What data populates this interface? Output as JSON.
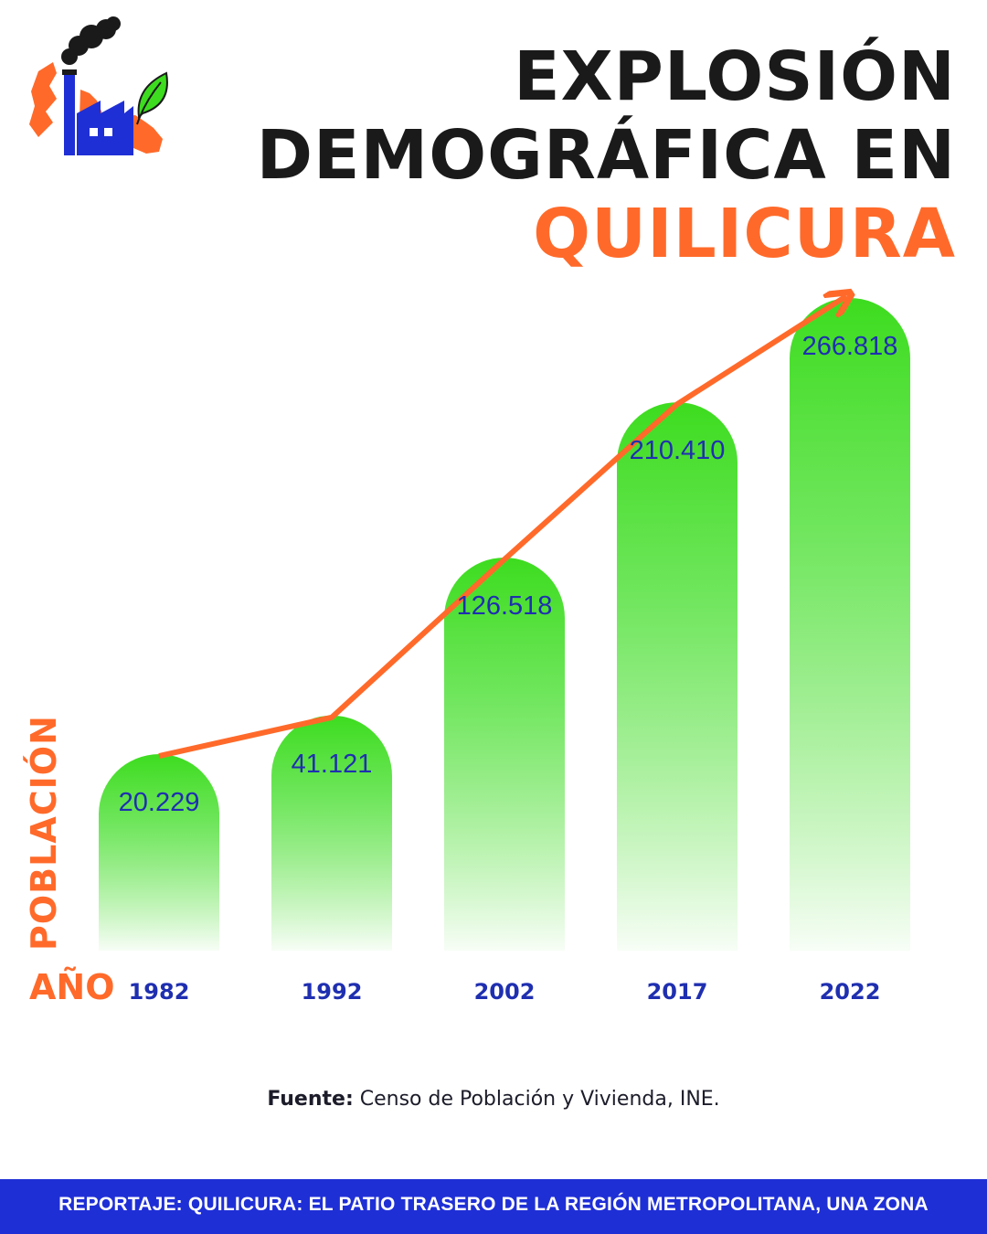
{
  "header": {
    "title_line1": "EXPLOSIÓN",
    "title_line2": "DEMOGRÁFICA EN",
    "title_line3": "QUILICURA"
  },
  "colors": {
    "title_dark": "#1a1a1a",
    "accent_orange": "#ff6a2a",
    "bar_green": "#3ddc1f",
    "value_blue": "#1f2fb0",
    "footer_blue": "#1f2fd6"
  },
  "logo": {
    "icon": "factory-with-leaf-icon"
  },
  "chart_data": {
    "type": "bar",
    "categories": [
      "1982",
      "1992",
      "2002",
      "2017",
      "2022"
    ],
    "values": [
      20229,
      41121,
      126518,
      210410,
      266818
    ],
    "value_labels": [
      "20.229",
      "41.121",
      "126.518",
      "210.410",
      "266.818"
    ],
    "ylabel": "POBLACIÓN",
    "xlabel": "AÑO",
    "trend_arrow": true,
    "grid": false,
    "legend": "none"
  },
  "source": {
    "label": "Fuente:",
    "text": " Censo de Población y Vivienda, INE."
  },
  "footer": {
    "text": "REPORTAJE: QUILICURA: EL PATIO TRASERO DE LA REGIÓN METROPOLITANA, UNA ZONA"
  }
}
